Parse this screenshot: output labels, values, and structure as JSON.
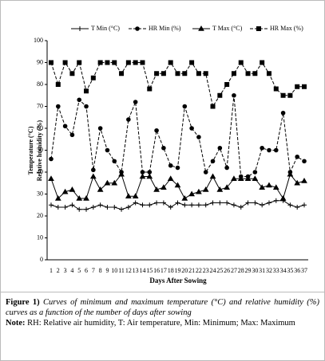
{
  "chart_data": {
    "type": "line",
    "legend": "top",
    "ylabel": [
      "Temperature (°C)",
      "Relative humidity (%)"
    ],
    "xlabel": "Days After Sowing",
    "categories": [
      "1",
      "2",
      "3",
      "4",
      "5",
      "6",
      "7",
      "8",
      "9",
      "10",
      "11",
      "12",
      "13",
      "14",
      "15",
      "16",
      "17",
      "18",
      "19",
      "20",
      "21",
      "22",
      "23",
      "24",
      "25",
      "26",
      "27",
      "28",
      "29",
      "30",
      "31",
      "32",
      "33",
      "34",
      "35",
      "36",
      "37"
    ],
    "ylim": [
      0,
      100
    ],
    "yticks": [
      0,
      10,
      20,
      30,
      40,
      50,
      60,
      70,
      80,
      90,
      100
    ],
    "series": [
      {
        "name": "T Min (°C)",
        "color": "#000000",
        "marker": "plus",
        "dashed": false,
        "values": [
          25,
          24,
          24,
          25,
          23,
          23,
          24,
          25,
          24,
          24,
          23,
          24,
          26,
          25,
          25,
          26,
          26,
          24,
          26,
          25,
          25,
          25,
          25,
          26,
          26,
          26,
          25,
          24,
          26,
          26,
          25,
          26,
          27,
          27,
          25,
          24,
          25
        ]
      },
      {
        "name": "HR Min (%)",
        "color": "#000000",
        "marker": "circle",
        "dashed": true,
        "values": [
          46,
          70,
          61,
          57,
          73,
          70,
          41,
          60,
          50,
          45,
          40,
          64,
          72,
          40,
          40,
          59,
          51,
          43,
          42,
          70,
          60,
          56,
          40,
          45,
          51,
          42,
          75,
          38,
          38,
          40,
          51,
          50,
          50,
          67,
          40,
          47,
          45
        ]
      },
      {
        "name": "T Max (°C)",
        "color": "#000000",
        "marker": "triangle",
        "dashed": false,
        "values": [
          37,
          28,
          31,
          32,
          28,
          28,
          38,
          32,
          35,
          35,
          39,
          29,
          29,
          38,
          38,
          32,
          33,
          37,
          34,
          28,
          30,
          31,
          32,
          38,
          32,
          33,
          37,
          37,
          37,
          37,
          33,
          34,
          33,
          28,
          39,
          35,
          36
        ]
      },
      {
        "name": "HR Max (%)",
        "color": "#000000",
        "marker": "square",
        "dashed": true,
        "values": [
          90,
          80,
          90,
          85,
          90,
          77,
          83,
          90,
          90,
          90,
          85,
          90,
          90,
          90,
          78,
          85,
          85,
          90,
          85,
          85,
          90,
          85,
          85,
          70,
          75,
          80,
          85,
          90,
          85,
          85,
          90,
          85,
          78,
          75,
          75,
          79,
          79
        ]
      }
    ]
  },
  "caption": {
    "label": "Figure 1)",
    "text": "Curves of minimum and maximum temperature (°C) and relative humidity (%) curves as a function of the number of days after sowing"
  },
  "note": {
    "label": "Note:",
    "text": "RH: Relative air humidity, T: Air temperature, Min: Minimum; Max: Maximum"
  }
}
